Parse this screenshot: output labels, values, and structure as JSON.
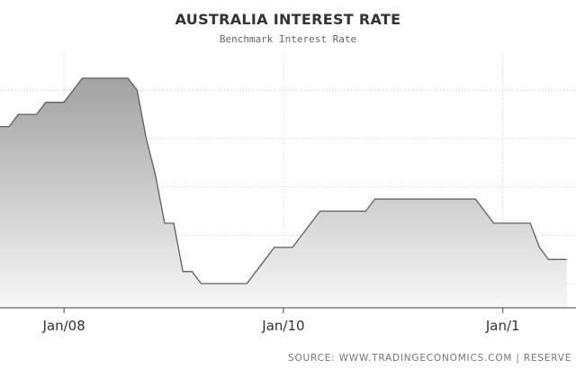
{
  "chart_data": {
    "type": "area",
    "title": "AUSTRALIA INTEREST RATE",
    "subtitle": "Benchmark Interest Rate",
    "xlabel": "",
    "ylabel": "",
    "x_tick_labels": [
      "Jan/08",
      "Jan/10",
      "Jan/1"
    ],
    "x": [
      "2007-06",
      "2007-07",
      "2007-08",
      "2007-09",
      "2007-10",
      "2007-11",
      "2007-12",
      "2008-01",
      "2008-02",
      "2008-03",
      "2008-04",
      "2008-05",
      "2008-06",
      "2008-07",
      "2008-08",
      "2008-09",
      "2008-10",
      "2008-11",
      "2008-12",
      "2009-01",
      "2009-02",
      "2009-03",
      "2009-04",
      "2009-05",
      "2009-06",
      "2009-07",
      "2009-08",
      "2009-09",
      "2009-10",
      "2009-11",
      "2009-12",
      "2010-01",
      "2010-02",
      "2010-03",
      "2010-04",
      "2010-05",
      "2010-06",
      "2010-07",
      "2010-08",
      "2010-09",
      "2010-10",
      "2010-11",
      "2010-12",
      "2011-01",
      "2011-02",
      "2011-03",
      "2011-04",
      "2011-05",
      "2011-06",
      "2011-07",
      "2011-08",
      "2011-09",
      "2011-10",
      "2011-11",
      "2011-12",
      "2012-01",
      "2012-02",
      "2012-03",
      "2012-04",
      "2012-05",
      "2012-06",
      "2012-07",
      "2012-08"
    ],
    "values": [
      6.25,
      6.25,
      6.5,
      6.5,
      6.5,
      6.75,
      6.75,
      6.75,
      7.0,
      7.25,
      7.25,
      7.25,
      7.25,
      7.25,
      7.25,
      7.0,
      6.0,
      5.25,
      4.25,
      4.25,
      3.25,
      3.25,
      3.0,
      3.0,
      3.0,
      3.0,
      3.0,
      3.0,
      3.25,
      3.5,
      3.75,
      3.75,
      3.75,
      4.0,
      4.25,
      4.5,
      4.5,
      4.5,
      4.5,
      4.5,
      4.5,
      4.75,
      4.75,
      4.75,
      4.75,
      4.75,
      4.75,
      4.75,
      4.75,
      4.75,
      4.75,
      4.75,
      4.75,
      4.5,
      4.25,
      4.25,
      4.25,
      4.25,
      4.25,
      3.75,
      3.5,
      3.5,
      3.5
    ],
    "grid": true,
    "legend": "none",
    "colors": {
      "line": "#5f5f5f",
      "fill_top": "#a2a2a2",
      "fill_bottom": "#f7f7f7",
      "grid": "#cfcfcf"
    }
  },
  "footer": {
    "source": "SOURCE: WWW.TRADINGECONOMICS.COM  |  RESERVE BA"
  }
}
